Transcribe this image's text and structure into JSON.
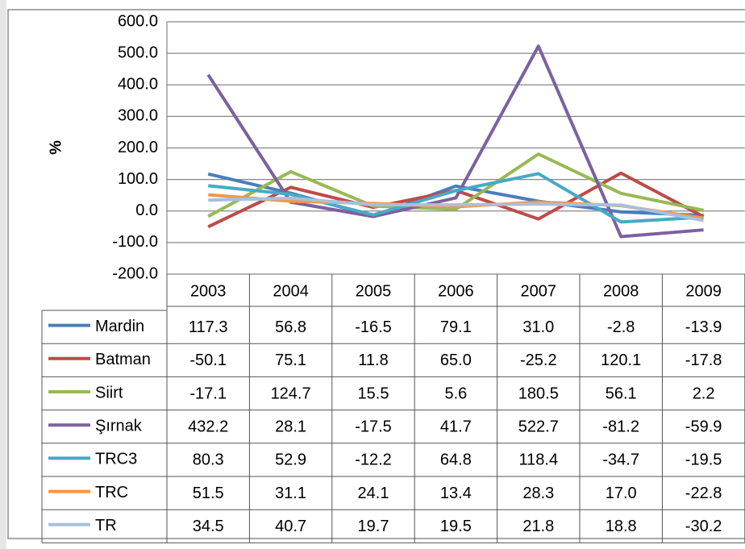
{
  "chart_data": {
    "type": "line",
    "y_label": "%",
    "categories": [
      "2003",
      "2004",
      "2005",
      "2006",
      "2007",
      "2008",
      "2009"
    ],
    "ylim": [
      -200,
      600
    ],
    "yticks": [
      {
        "value": 600,
        "label": "600.0"
      },
      {
        "value": 500,
        "label": "500.0"
      },
      {
        "value": 400,
        "label": "400.0"
      },
      {
        "value": 300,
        "label": "300.0"
      },
      {
        "value": 200,
        "label": "200.0"
      },
      {
        "value": 100,
        "label": "100.0"
      },
      {
        "value": 0,
        "label": "0.0"
      },
      {
        "value": -100,
        "label": "-100.0"
      },
      {
        "value": -200,
        "label": "-200.0"
      }
    ],
    "grid": true,
    "series": [
      {
        "name": "Mardin",
        "color": "#4a7ebb",
        "values": [
          117.3,
          56.8,
          -16.5,
          79.1,
          31.0,
          -2.8,
          -13.9
        ],
        "value_labels": [
          "117.3",
          "56.8",
          "-16.5",
          "79.1",
          "31.0",
          "-2.8",
          "-13.9"
        ]
      },
      {
        "name": "Batman",
        "color": "#be4b48",
        "values": [
          -50.1,
          75.1,
          11.8,
          65.0,
          -25.2,
          120.1,
          -17.8
        ],
        "value_labels": [
          "-50.1",
          "75.1",
          "11.8",
          "65.0",
          "-25.2",
          "120.1",
          "-17.8"
        ]
      },
      {
        "name": "Siirt",
        "color": "#98b954",
        "values": [
          -17.1,
          124.7,
          15.5,
          5.6,
          180.5,
          56.1,
          2.2
        ],
        "value_labels": [
          "-17.1",
          "124.7",
          "15.5",
          "5.6",
          "180.5",
          "56.1",
          "2.2"
        ]
      },
      {
        "name": "Şırnak",
        "color": "#7d60a0",
        "values": [
          432.2,
          28.1,
          -17.5,
          41.7,
          522.7,
          -81.2,
          -59.9
        ],
        "value_labels": [
          "432.2",
          "28.1",
          "-17.5",
          "41.7",
          "522.7",
          "-81.2",
          "-59.9"
        ]
      },
      {
        "name": "TRC3",
        "color": "#46aac5",
        "values": [
          80.3,
          52.9,
          -12.2,
          64.8,
          118.4,
          -34.7,
          -19.5
        ],
        "value_labels": [
          "80.3",
          "52.9",
          "-12.2",
          "64.8",
          "118.4",
          "-34.7",
          "-19.5"
        ]
      },
      {
        "name": "TRC",
        "color": "#f79646",
        "values": [
          51.5,
          31.1,
          24.1,
          13.4,
          28.3,
          17.0,
          -22.8
        ],
        "value_labels": [
          "51.5",
          "31.1",
          "24.1",
          "13.4",
          "28.3",
          "17.0",
          "-22.8"
        ]
      },
      {
        "name": "TR",
        "color": "#a7c0de",
        "values": [
          34.5,
          40.7,
          19.7,
          19.5,
          21.8,
          18.8,
          -30.2
        ],
        "value_labels": [
          "34.5",
          "40.7",
          "19.7",
          "19.5",
          "21.8",
          "18.8",
          "-30.2"
        ]
      }
    ]
  }
}
